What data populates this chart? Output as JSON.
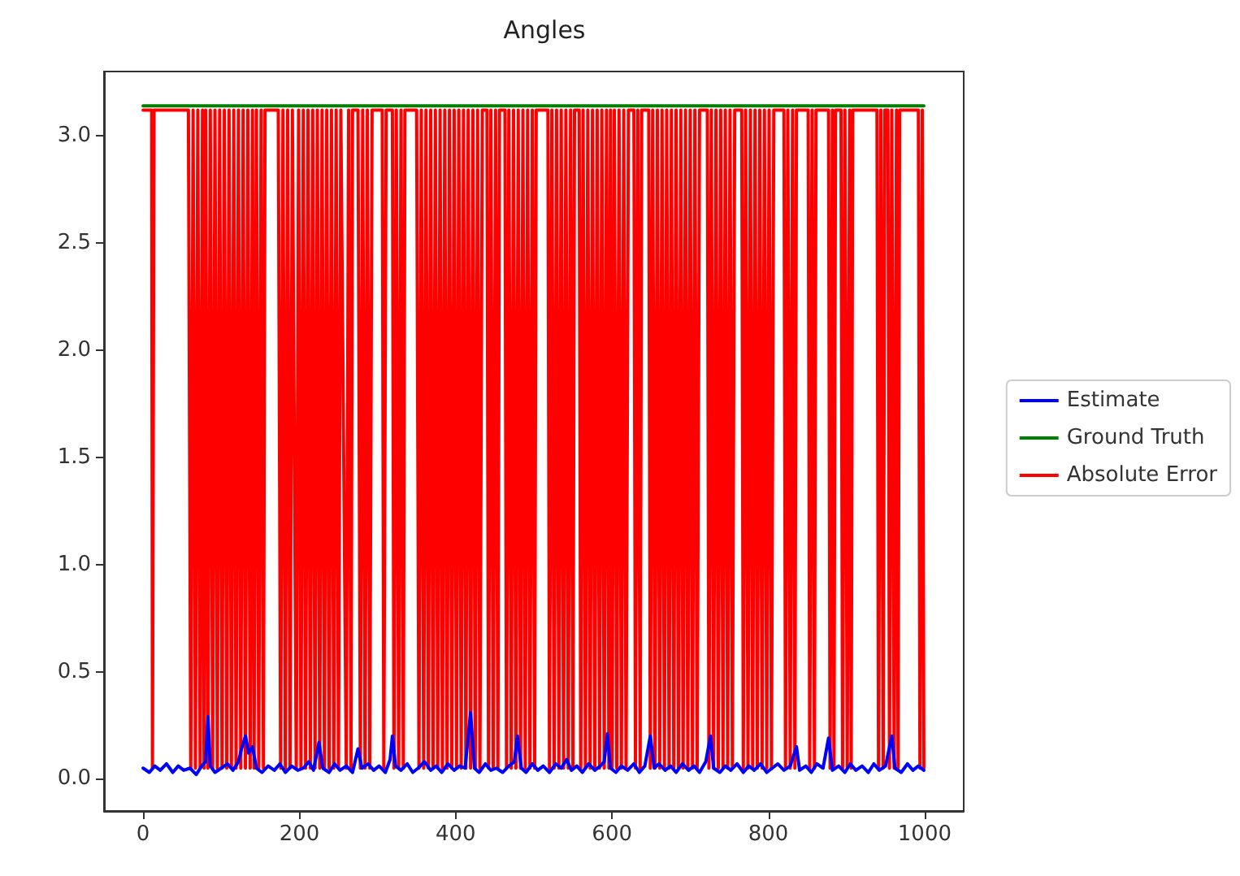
{
  "chart_data": {
    "type": "line",
    "title": "Angles",
    "xlim": [
      -50,
      1050
    ],
    "xticks": [
      0,
      200,
      400,
      600,
      800,
      1000
    ],
    "ylim": [
      -0.15,
      3.3
    ],
    "yticks": [
      {
        "value": 0,
        "label": "0.0"
      },
      0.5,
      {
        "value": 1,
        "label": "1.0"
      },
      1.5,
      {
        "value": 2,
        "label": "2.0"
      },
      2.5,
      {
        "value": 3,
        "label": "3.0"
      }
    ],
    "grid": false,
    "legend": "right",
    "marker": "none",
    "line_style": "solid",
    "series": [
      {
        "name": "Estimate",
        "color": "#0000ff",
        "x": [
          0,
          8,
          15,
          22,
          30,
          38,
          45,
          52,
          60,
          68,
          75,
          80,
          83,
          86,
          92,
          100,
          108,
          115,
          122,
          126,
          131,
          135,
          140,
          145,
          152,
          160,
          168,
          175,
          182,
          190,
          198,
          205,
          212,
          218,
          225,
          230,
          238,
          245,
          252,
          260,
          268,
          275,
          280,
          288,
          295,
          302,
          310,
          316,
          319,
          323,
          330,
          338,
          345,
          352,
          360,
          368,
          375,
          382,
          390,
          398,
          405,
          412,
          419,
          424,
          430,
          438,
          445,
          452,
          460,
          468,
          475,
          479,
          484,
          490,
          498,
          505,
          512,
          520,
          528,
          535,
          542,
          548,
          555,
          562,
          570,
          578,
          585,
          590,
          594,
          598,
          605,
          612,
          620,
          628,
          635,
          642,
          649,
          654,
          660,
          668,
          675,
          682,
          690,
          698,
          705,
          712,
          720,
          726,
          730,
          738,
          745,
          752,
          760,
          768,
          775,
          782,
          790,
          798,
          805,
          812,
          820,
          828,
          836,
          840,
          848,
          855,
          862,
          870,
          877,
          882,
          890,
          898,
          905,
          912,
          920,
          928,
          935,
          942,
          950,
          958,
          962,
          970,
          978,
          985,
          992,
          999
        ],
        "values": [
          0.05,
          0.03,
          0.06,
          0.04,
          0.07,
          0.03,
          0.06,
          0.04,
          0.05,
          0.02,
          0.06,
          0.08,
          0.29,
          0.06,
          0.03,
          0.05,
          0.07,
          0.04,
          0.08,
          0.14,
          0.2,
          0.12,
          0.15,
          0.05,
          0.03,
          0.06,
          0.04,
          0.07,
          0.03,
          0.06,
          0.04,
          0.05,
          0.08,
          0.04,
          0.17,
          0.05,
          0.03,
          0.07,
          0.04,
          0.06,
          0.03,
          0.14,
          0.05,
          0.07,
          0.04,
          0.06,
          0.03,
          0.09,
          0.2,
          0.06,
          0.04,
          0.07,
          0.03,
          0.05,
          0.08,
          0.04,
          0.06,
          0.03,
          0.07,
          0.04,
          0.06,
          0.05,
          0.31,
          0.05,
          0.03,
          0.07,
          0.04,
          0.05,
          0.03,
          0.06,
          0.08,
          0.2,
          0.05,
          0.03,
          0.07,
          0.04,
          0.06,
          0.03,
          0.07,
          0.05,
          0.09,
          0.04,
          0.06,
          0.03,
          0.07,
          0.04,
          0.06,
          0.08,
          0.21,
          0.05,
          0.03,
          0.06,
          0.04,
          0.07,
          0.03,
          0.06,
          0.2,
          0.05,
          0.07,
          0.04,
          0.06,
          0.03,
          0.07,
          0.04,
          0.06,
          0.03,
          0.08,
          0.2,
          0.05,
          0.03,
          0.06,
          0.04,
          0.07,
          0.03,
          0.06,
          0.04,
          0.07,
          0.03,
          0.05,
          0.07,
          0.04,
          0.06,
          0.15,
          0.04,
          0.06,
          0.03,
          0.07,
          0.05,
          0.19,
          0.04,
          0.06,
          0.03,
          0.07,
          0.04,
          0.06,
          0.03,
          0.07,
          0.04,
          0.06,
          0.2,
          0.05,
          0.03,
          0.07,
          0.04,
          0.06,
          0.04
        ]
      },
      {
        "name": "Ground Truth",
        "color": "#008000",
        "x": [
          0,
          999
        ],
        "values": [
          3.14,
          3.14
        ]
      },
      {
        "name": "Absolute Error",
        "color": "#ff0000",
        "x": [
          0,
          11,
          12,
          14,
          58,
          61,
          64,
          67,
          70,
          73,
          76,
          78,
          80,
          83,
          86,
          89,
          92,
          95,
          98,
          101,
          104,
          107,
          110,
          113,
          116,
          119,
          122,
          125,
          128,
          131,
          134,
          137,
          140,
          142,
          145,
          148,
          151,
          154,
          156,
          173,
          176,
          179,
          182,
          185,
          188,
          191,
          196,
          199,
          202,
          205,
          208,
          211,
          214,
          217,
          220,
          223,
          226,
          229,
          232,
          235,
          238,
          241,
          244,
          247,
          250,
          253,
          260,
          263,
          266,
          268,
          275,
          278,
          281,
          284,
          287,
          290,
          293,
          306,
          308,
          311,
          319,
          321,
          324,
          327,
          330,
          333,
          335,
          350,
          353,
          356,
          359,
          362,
          365,
          368,
          371,
          374,
          377,
          380,
          383,
          386,
          389,
          392,
          395,
          398,
          401,
          404,
          407,
          410,
          413,
          416,
          419,
          422,
          425,
          428,
          431,
          434,
          440,
          442,
          445,
          448,
          451,
          454,
          456,
          463,
          465,
          468,
          471,
          474,
          477,
          480,
          483,
          486,
          489,
          492,
          495,
          498,
          501,
          503,
          518,
          520,
          523,
          526,
          529,
          532,
          535,
          538,
          541,
          544,
          547,
          550,
          552,
          558,
          560,
          563,
          566,
          569,
          572,
          575,
          578,
          581,
          584,
          587,
          590,
          593,
          596,
          598,
          600,
          603,
          606,
          609,
          612,
          615,
          618,
          621,
          628,
          630,
          633,
          636,
          638,
          647,
          649,
          652,
          655,
          658,
          661,
          664,
          667,
          670,
          673,
          676,
          679,
          682,
          685,
          688,
          691,
          694,
          697,
          700,
          703,
          706,
          709,
          712,
          722,
          724,
          727,
          730,
          733,
          736,
          739,
          742,
          745,
          748,
          751,
          754,
          757,
          766,
          768,
          771,
          774,
          777,
          780,
          783,
          786,
          789,
          792,
          795,
          798,
          801,
          804,
          807,
          820,
          822,
          825,
          828,
          831,
          834,
          836,
          851,
          853,
          856,
          859,
          861,
          877,
          879,
          882,
          884,
          886,
          893,
          895,
          898,
          901,
          904,
          906,
          908,
          939,
          941,
          944,
          947,
          949,
          953,
          955,
          958,
          961,
          964,
          966,
          968,
          992,
          994,
          997,
          999
        ],
        "values": [
          3.12,
          3.12,
          0.05,
          3.12,
          3.12,
          0.05,
          3.12,
          0.05,
          3.12,
          0.05,
          3.12,
          0.05,
          3.12,
          0.05,
          3.12,
          0.05,
          3.12,
          0.05,
          3.12,
          0.05,
          3.12,
          0.05,
          3.12,
          0.05,
          3.12,
          0.05,
          3.12,
          0.05,
          3.12,
          0.05,
          3.12,
          0.05,
          3.12,
          0.05,
          3.12,
          0.05,
          3.12,
          0.05,
          3.12,
          3.12,
          0.05,
          3.12,
          0.05,
          3.12,
          0.05,
          3.12,
          0.05,
          3.12,
          0.05,
          3.12,
          0.05,
          3.12,
          0.05,
          3.12,
          0.05,
          3.12,
          0.05,
          3.12,
          0.05,
          3.12,
          0.05,
          3.12,
          0.05,
          3.12,
          0.05,
          3.12,
          0.05,
          3.12,
          0.05,
          3.12,
          3.12,
          0.05,
          3.12,
          0.05,
          3.12,
          0.05,
          3.12,
          3.12,
          0.05,
          3.12,
          3.12,
          0.05,
          3.12,
          0.05,
          3.12,
          0.05,
          3.12,
          3.12,
          0.05,
          3.12,
          0.05,
          3.12,
          0.05,
          3.12,
          0.05,
          3.12,
          0.05,
          3.12,
          0.05,
          3.12,
          0.05,
          3.12,
          0.05,
          3.12,
          0.05,
          3.12,
          0.05,
          3.12,
          0.05,
          3.12,
          0.05,
          3.12,
          0.05,
          3.12,
          0.05,
          3.12,
          3.12,
          0.05,
          3.12,
          0.05,
          3.12,
          0.05,
          3.12,
          3.12,
          0.05,
          3.12,
          0.05,
          3.12,
          0.05,
          3.12,
          0.05,
          3.12,
          0.05,
          3.12,
          0.05,
          3.12,
          0.05,
          3.12,
          3.12,
          0.05,
          3.12,
          0.05,
          3.12,
          0.05,
          3.12,
          0.05,
          3.12,
          0.05,
          3.12,
          0.05,
          3.12,
          3.12,
          0.05,
          3.12,
          0.05,
          3.12,
          0.05,
          3.12,
          0.05,
          3.12,
          0.05,
          3.12,
          0.05,
          3.12,
          0.05,
          3.12,
          0.05,
          3.12,
          0.05,
          3.12,
          0.05,
          3.12,
          0.05,
          3.12,
          3.12,
          0.05,
          3.12,
          0.05,
          3.12,
          3.12,
          0.05,
          3.12,
          0.05,
          3.12,
          0.05,
          3.12,
          0.05,
          3.12,
          0.05,
          3.12,
          0.05,
          3.12,
          0.05,
          3.12,
          0.05,
          3.12,
          0.05,
          3.12,
          0.05,
          3.12,
          0.05,
          3.12,
          3.12,
          0.05,
          3.12,
          0.05,
          3.12,
          0.05,
          3.12,
          0.05,
          3.12,
          0.05,
          3.12,
          0.05,
          3.12,
          3.12,
          0.05,
          3.12,
          0.05,
          3.12,
          0.05,
          3.12,
          0.05,
          3.12,
          0.05,
          3.12,
          0.05,
          3.12,
          0.05,
          3.12,
          3.12,
          0.05,
          3.12,
          0.05,
          3.12,
          0.05,
          3.12,
          3.12,
          0.05,
          3.12,
          0.05,
          3.12,
          3.12,
          0.05,
          3.12,
          0.05,
          3.12,
          3.12,
          0.05,
          3.12,
          0.05,
          3.12,
          0.05,
          3.12,
          3.12,
          0.05,
          3.12,
          0.05,
          3.12,
          3.12,
          0.05,
          3.12,
          0.05,
          3.12,
          0.05,
          3.12,
          3.12,
          0.05,
          3.12,
          0.05
        ]
      }
    ]
  }
}
